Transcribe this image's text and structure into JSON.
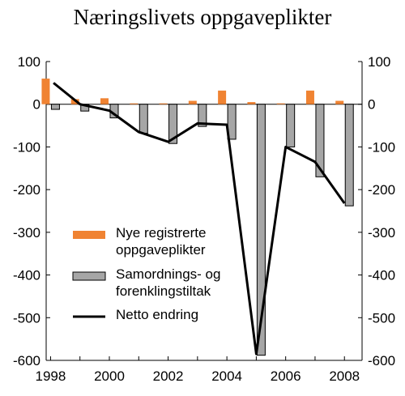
{
  "chart_data": {
    "type": "bar",
    "title": "Næringslivets oppgaveplikter",
    "x_tick_labels": [
      "1998",
      "2000",
      "2002",
      "2004",
      "2006",
      "2008"
    ],
    "y_tick_labels": [
      "100",
      "0",
      "-100",
      "-200",
      "-300",
      "-400",
      "-500",
      "-600"
    ],
    "ylim": [
      -600,
      100
    ],
    "categories": [
      1998,
      1999,
      2000,
      2001,
      2002,
      2003,
      2004,
      2005,
      2006,
      2007,
      2008
    ],
    "series": [
      {
        "name": "Nye registrerte oppgaveplikter",
        "name_lines": [
          "Nye registrerte",
          "oppgaveplikter"
        ],
        "type": "bar",
        "color": "#f08332",
        "values": [
          60,
          12,
          14,
          2,
          2,
          8,
          32,
          5,
          2,
          32,
          8
        ]
      },
      {
        "name": "Samordnings- og forenklingstiltak",
        "name_lines": [
          "Samordnings- og",
          "forenklingstiltak"
        ],
        "type": "bar",
        "color": "#a6a6a6",
        "values": [
          -12,
          -16,
          -32,
          -68,
          -92,
          -52,
          -82,
          -588,
          -100,
          -170,
          -238
        ]
      },
      {
        "name": "Netto endring",
        "name_lines": [
          "Netto endring"
        ],
        "type": "line",
        "color": "#000000",
        "x": [
          1998.1,
          1999,
          2000,
          2001,
          2002,
          2003,
          2004,
          2005,
          2006,
          2007,
          2008
        ],
        "values": [
          50,
          0,
          -15,
          -65,
          -88,
          -45,
          -48,
          -585,
          -100,
          -135,
          -232
        ]
      }
    ],
    "legend_position": "lower-left",
    "grid": false
  }
}
